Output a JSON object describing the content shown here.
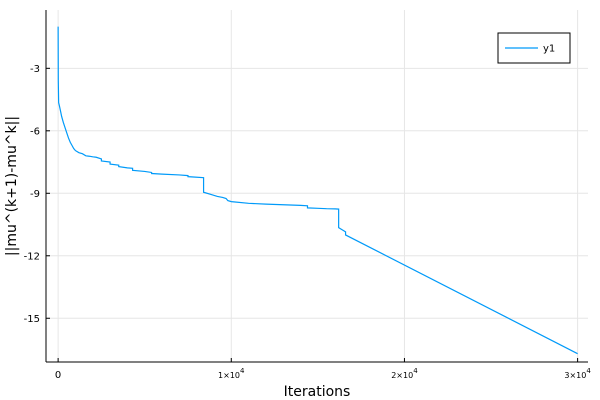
{
  "chart_data": {
    "type": "line",
    "title": "",
    "xlabel": "Iterations",
    "ylabel": "||mu^(k+1)-mu^k||",
    "xlim": [
      -700,
      30600
    ],
    "ylim": [
      -17.1,
      -0.2
    ],
    "x_ticks": [
      {
        "value": 0,
        "mantissa": "0",
        "exp": ""
      },
      {
        "value": 10000,
        "mantissa": "1×10",
        "exp": "4"
      },
      {
        "value": 20000,
        "mantissa": "2×10",
        "exp": "4"
      },
      {
        "value": 30000,
        "mantissa": "3×10",
        "exp": "4"
      }
    ],
    "y_ticks": [
      {
        "value": -3,
        "label": "-3"
      },
      {
        "value": -6,
        "label": "-6"
      },
      {
        "value": -9,
        "label": "-9"
      },
      {
        "value": -12,
        "label": "-12"
      },
      {
        "value": -15,
        "label": "-15"
      }
    ],
    "grid": true,
    "legend_position": "top-right",
    "series": [
      {
        "name": "y1",
        "color": "#009af9",
        "x": [
          0,
          10,
          30,
          60,
          100,
          150,
          200,
          300,
          400,
          500,
          600,
          700,
          800,
          900,
          1000,
          1100,
          1200,
          1400,
          1600,
          1800,
          2000,
          2200,
          2500,
          2500,
          3000,
          3000,
          3500,
          3500,
          4000,
          4300,
          4300,
          5000,
          5400,
          5400,
          6000,
          7000,
          7500,
          7500,
          8400,
          8400,
          8800,
          9200,
          9500,
          9700,
          9800,
          10000,
          11000,
          12000,
          13000,
          14000,
          14400,
          14400,
          15000,
          15500,
          16000,
          16200,
          16200,
          16400,
          16600,
          16600,
          30000
        ],
        "y": [
          -1.0,
          -3.6,
          -4.65,
          -4.75,
          -4.9,
          -5.1,
          -5.3,
          -5.6,
          -5.85,
          -6.1,
          -6.35,
          -6.55,
          -6.7,
          -6.85,
          -6.95,
          -7.0,
          -7.05,
          -7.1,
          -7.2,
          -7.22,
          -7.25,
          -7.27,
          -7.35,
          -7.45,
          -7.5,
          -7.6,
          -7.65,
          -7.72,
          -7.78,
          -7.8,
          -7.9,
          -7.95,
          -8.0,
          -8.05,
          -8.08,
          -8.12,
          -8.15,
          -8.2,
          -8.25,
          -8.95,
          -9.05,
          -9.15,
          -9.2,
          -9.25,
          -9.35,
          -9.4,
          -9.48,
          -9.52,
          -9.55,
          -9.58,
          -9.6,
          -9.7,
          -9.72,
          -9.74,
          -9.75,
          -9.76,
          -10.65,
          -10.75,
          -10.85,
          -11.0,
          -16.7
        ]
      }
    ]
  }
}
